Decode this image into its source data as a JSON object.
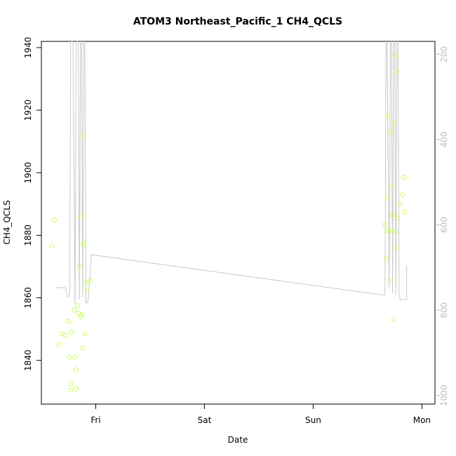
{
  "chart_data": {
    "type": "scatter",
    "title": "ATOM3 Northeast_Pacific_1 CH4_QCLS",
    "xlabel": "Date",
    "ylabel": "CH4_QCLS",
    "x_ticks": [
      {
        "value": 1.0,
        "label": "Fri"
      },
      {
        "value": 2.0,
        "label": "Sat"
      },
      {
        "value": 3.0,
        "label": "Sun"
      },
      {
        "value": 4.0,
        "label": "Mon"
      }
    ],
    "xlim": [
      0.5,
      4.12
    ],
    "ylim": [
      1826,
      1942
    ],
    "y_ticks": [
      1840,
      1860,
      1880,
      1900,
      1920,
      1940
    ],
    "y2_ticks": [
      200,
      400,
      600,
      800,
      1000
    ],
    "y2lim": [
      1020,
      170
    ],
    "point_color": "#ccff66",
    "line_color": "#c8c8c8",
    "series": [
      {
        "kind": "points",
        "points": [
          [
            0.6,
            1876.5
          ],
          [
            0.62,
            1885.0
          ],
          [
            0.66,
            1845.0
          ],
          [
            0.69,
            1848.5
          ],
          [
            0.72,
            1848.0
          ],
          [
            0.75,
            1852.5
          ],
          [
            0.76,
            1841.0
          ],
          [
            0.77,
            1832.5
          ],
          [
            0.77,
            1830.5
          ],
          [
            0.78,
            1849.0
          ],
          [
            0.8,
            1856.0
          ],
          [
            0.81,
            1841.0
          ],
          [
            0.82,
            1837.0
          ],
          [
            0.82,
            1831.0
          ],
          [
            0.83,
            1857.5
          ],
          [
            0.84,
            1855.0
          ],
          [
            0.85,
            1870.0
          ],
          [
            0.86,
            1886.0
          ],
          [
            0.86,
            1854.0
          ],
          [
            0.87,
            1854.5
          ],
          [
            0.88,
            1844.0
          ],
          [
            0.89,
            1877.0
          ],
          [
            0.89,
            1877.5
          ],
          [
            0.89,
            1912.0
          ],
          [
            0.9,
            1848.5
          ],
          [
            0.91,
            1865.0
          ],
          [
            0.92,
            1862.5
          ],
          [
            0.95,
            1865.5
          ],
          [
            3.66,
            1883.5
          ],
          [
            3.67,
            1872.5
          ],
          [
            3.68,
            1892.0
          ],
          [
            3.69,
            1918.0
          ],
          [
            3.69,
            1881.5
          ],
          [
            3.7,
            1865.5
          ],
          [
            3.71,
            1881.5
          ],
          [
            3.71,
            1913.0
          ],
          [
            3.72,
            1895.5
          ],
          [
            3.73,
            1886.5
          ],
          [
            3.74,
            1916.0
          ],
          [
            3.74,
            1853.0
          ],
          [
            3.75,
            1937.5
          ],
          [
            3.76,
            1881.0
          ],
          [
            3.77,
            1876.0
          ],
          [
            3.77,
            1932.5
          ],
          [
            3.78,
            1885.5
          ],
          [
            3.8,
            1890.0
          ],
          [
            3.82,
            1893.0
          ],
          [
            3.84,
            1887.5
          ],
          [
            3.84,
            1898.5
          ]
        ]
      },
      {
        "kind": "line",
        "axis": "right",
        "points": [
          [
            0.64,
            747
          ],
          [
            0.72,
            747
          ],
          [
            0.74,
            767
          ],
          [
            0.76,
            767
          ],
          [
            0.77,
            170
          ],
          [
            0.79,
            170
          ],
          [
            0.81,
            785
          ],
          [
            0.82,
            170
          ],
          [
            0.84,
            170
          ],
          [
            0.85,
            775
          ],
          [
            0.86,
            170
          ],
          [
            0.87,
            170
          ],
          [
            0.88,
            770
          ],
          [
            0.89,
            170
          ],
          [
            0.9,
            170
          ],
          [
            0.91,
            785
          ],
          [
            0.92,
            780
          ],
          [
            0.93,
            780
          ],
          [
            0.96,
            670
          ],
          [
            3.63,
            764
          ],
          [
            3.66,
            764
          ],
          [
            3.67,
            170
          ],
          [
            3.68,
            170
          ],
          [
            3.7,
            750
          ],
          [
            3.71,
            170
          ],
          [
            3.72,
            170
          ],
          [
            3.73,
            760
          ],
          [
            3.74,
            170
          ],
          [
            3.75,
            170
          ],
          [
            3.76,
            765
          ],
          [
            3.77,
            170
          ],
          [
            3.78,
            170
          ],
          [
            3.79,
            760
          ],
          [
            3.8,
            775
          ],
          [
            3.86,
            775
          ],
          [
            3.86,
            695
          ]
        ]
      }
    ]
  }
}
